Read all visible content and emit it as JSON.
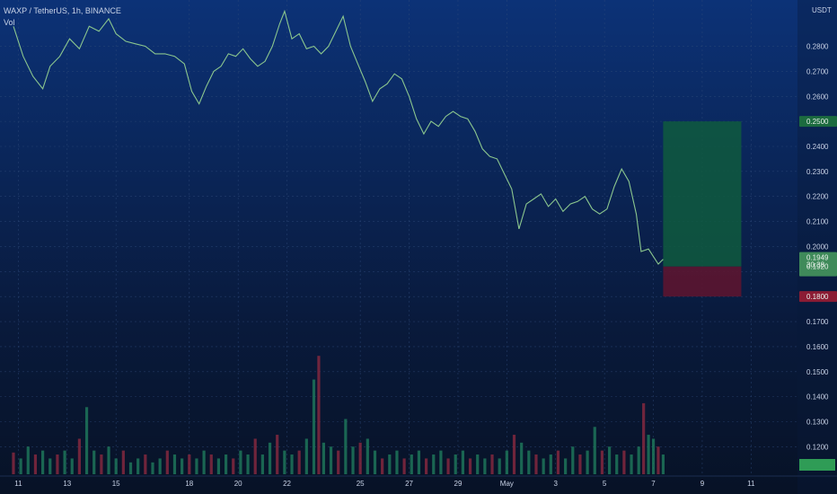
{
  "chart_data": {
    "type": "line",
    "title": "WAXP / TetherUS, 1h, BINANCE",
    "volume_label": "Vol",
    "currency": "USDT",
    "y_ticks": [
      "0.2800",
      "0.2700",
      "0.2600",
      "0.2500",
      "0.2400",
      "0.2300",
      "0.2200",
      "0.2100",
      "0.2000",
      "0.1900",
      "0.1800",
      "0.1700",
      "0.1600",
      "0.1500",
      "0.1400",
      "0.1300",
      "0.1200"
    ],
    "ylim": [
      0.109,
      0.2985
    ],
    "x_ticks": [
      "11",
      "13",
      "15",
      "18",
      "20",
      "22",
      "25",
      "27",
      "29",
      "May",
      "3",
      "5",
      "7",
      "9",
      "11"
    ],
    "x_tick_days": [
      11,
      13,
      15,
      18,
      20,
      22,
      25,
      27,
      29,
      31,
      33,
      35,
      37,
      39,
      41
    ],
    "xlim": [
      10.25,
      42.9
    ],
    "series": [
      {
        "values": [
          [
            10.8,
            0.288
          ],
          [
            11.2,
            0.276
          ],
          [
            11.6,
            0.268
          ],
          [
            12.0,
            0.263
          ],
          [
            12.3,
            0.272
          ],
          [
            12.7,
            0.276
          ],
          [
            13.1,
            0.283
          ],
          [
            13.5,
            0.279
          ],
          [
            13.9,
            0.288
          ],
          [
            14.3,
            0.286
          ],
          [
            14.7,
            0.291
          ],
          [
            15.0,
            0.285
          ],
          [
            15.4,
            0.282
          ],
          [
            15.8,
            0.281
          ],
          [
            16.2,
            0.28
          ],
          [
            16.6,
            0.277
          ],
          [
            17.0,
            0.277
          ],
          [
            17.4,
            0.276
          ],
          [
            17.8,
            0.273
          ],
          [
            18.1,
            0.262
          ],
          [
            18.4,
            0.257
          ],
          [
            18.7,
            0.264
          ],
          [
            19.0,
            0.27
          ],
          [
            19.3,
            0.272
          ],
          [
            19.6,
            0.277
          ],
          [
            19.9,
            0.276
          ],
          [
            20.2,
            0.279
          ],
          [
            20.5,
            0.275
          ],
          [
            20.8,
            0.272
          ],
          [
            21.1,
            0.274
          ],
          [
            21.4,
            0.28
          ],
          [
            21.7,
            0.289
          ],
          [
            21.9,
            0.294
          ],
          [
            22.2,
            0.283
          ],
          [
            22.5,
            0.285
          ],
          [
            22.8,
            0.279
          ],
          [
            23.1,
            0.28
          ],
          [
            23.4,
            0.277
          ],
          [
            23.7,
            0.28
          ],
          [
            24.0,
            0.286
          ],
          [
            24.3,
            0.292
          ],
          [
            24.6,
            0.28
          ],
          [
            24.9,
            0.273
          ],
          [
            25.2,
            0.266
          ],
          [
            25.5,
            0.258
          ],
          [
            25.8,
            0.263
          ],
          [
            26.1,
            0.265
          ],
          [
            26.4,
            0.269
          ],
          [
            26.7,
            0.267
          ],
          [
            27.0,
            0.26
          ],
          [
            27.3,
            0.251
          ],
          [
            27.6,
            0.245
          ],
          [
            27.9,
            0.25
          ],
          [
            28.2,
            0.248
          ],
          [
            28.5,
            0.252
          ],
          [
            28.8,
            0.254
          ],
          [
            29.1,
            0.252
          ],
          [
            29.4,
            0.251
          ],
          [
            29.7,
            0.246
          ],
          [
            30.0,
            0.239
          ],
          [
            30.3,
            0.236
          ],
          [
            30.6,
            0.235
          ],
          [
            30.9,
            0.229
          ],
          [
            31.2,
            0.223
          ],
          [
            31.5,
            0.207
          ],
          [
            31.8,
            0.217
          ],
          [
            32.1,
            0.219
          ],
          [
            32.4,
            0.221
          ],
          [
            32.7,
            0.216
          ],
          [
            33.0,
            0.219
          ],
          [
            33.3,
            0.214
          ],
          [
            33.6,
            0.217
          ],
          [
            33.9,
            0.218
          ],
          [
            34.2,
            0.22
          ],
          [
            34.5,
            0.215
          ],
          [
            34.8,
            0.213
          ],
          [
            35.1,
            0.215
          ],
          [
            35.4,
            0.224
          ],
          [
            35.7,
            0.231
          ],
          [
            36.0,
            0.226
          ],
          [
            36.3,
            0.213
          ],
          [
            36.5,
            0.198
          ],
          [
            36.8,
            0.199
          ],
          [
            37.0,
            0.196
          ],
          [
            37.2,
            0.193
          ],
          [
            37.4,
            0.1949
          ]
        ]
      }
    ],
    "volume_max": 0.0033,
    "volume": [
      [
        10.8,
        0.00055
      ],
      [
        11.1,
        0.0004
      ],
      [
        11.4,
        0.0007
      ],
      [
        11.7,
        0.0005
      ],
      [
        12.0,
        0.0006
      ],
      [
        12.3,
        0.0004
      ],
      [
        12.6,
        0.0005
      ],
      [
        12.9,
        0.0006
      ],
      [
        13.2,
        0.0004
      ],
      [
        13.5,
        0.0009
      ],
      [
        13.8,
        0.0017
      ],
      [
        14.1,
        0.0006
      ],
      [
        14.4,
        0.0005
      ],
      [
        14.7,
        0.0007
      ],
      [
        15.0,
        0.0004
      ],
      [
        15.3,
        0.0006
      ],
      [
        15.6,
        0.0003
      ],
      [
        15.9,
        0.0004
      ],
      [
        16.2,
        0.0005
      ],
      [
        16.5,
        0.0003
      ],
      [
        16.8,
        0.0004
      ],
      [
        17.1,
        0.0006
      ],
      [
        17.4,
        0.0005
      ],
      [
        17.7,
        0.0004
      ],
      [
        18.0,
        0.0005
      ],
      [
        18.3,
        0.0004
      ],
      [
        18.6,
        0.0006
      ],
      [
        18.9,
        0.0005
      ],
      [
        19.2,
        0.0004
      ],
      [
        19.5,
        0.0005
      ],
      [
        19.8,
        0.0004
      ],
      [
        20.1,
        0.0006
      ],
      [
        20.4,
        0.0005
      ],
      [
        20.7,
        0.0009
      ],
      [
        21.0,
        0.0005
      ],
      [
        21.3,
        0.0008
      ],
      [
        21.6,
        0.001
      ],
      [
        21.9,
        0.0006
      ],
      [
        22.2,
        0.0005
      ],
      [
        22.5,
        0.0006
      ],
      [
        22.8,
        0.0009
      ],
      [
        23.1,
        0.0024
      ],
      [
        23.3,
        0.003
      ],
      [
        23.5,
        0.0008
      ],
      [
        23.8,
        0.0007
      ],
      [
        24.1,
        0.0006
      ],
      [
        24.4,
        0.0014
      ],
      [
        24.7,
        0.0007
      ],
      [
        25.0,
        0.0008
      ],
      [
        25.3,
        0.0009
      ],
      [
        25.6,
        0.0006
      ],
      [
        25.9,
        0.0004
      ],
      [
        26.2,
        0.0005
      ],
      [
        26.5,
        0.0006
      ],
      [
        26.8,
        0.0004
      ],
      [
        27.1,
        0.0005
      ],
      [
        27.4,
        0.0006
      ],
      [
        27.7,
        0.0004
      ],
      [
        28.0,
        0.0005
      ],
      [
        28.3,
        0.0006
      ],
      [
        28.6,
        0.0004
      ],
      [
        28.9,
        0.0005
      ],
      [
        29.2,
        0.0006
      ],
      [
        29.5,
        0.0004
      ],
      [
        29.8,
        0.0005
      ],
      [
        30.1,
        0.0004
      ],
      [
        30.4,
        0.0005
      ],
      [
        30.7,
        0.0004
      ],
      [
        31.0,
        0.0006
      ],
      [
        31.3,
        0.001
      ],
      [
        31.6,
        0.0008
      ],
      [
        31.9,
        0.0006
      ],
      [
        32.2,
        0.0005
      ],
      [
        32.5,
        0.0004
      ],
      [
        32.8,
        0.0005
      ],
      [
        33.1,
        0.0006
      ],
      [
        33.4,
        0.0004
      ],
      [
        33.7,
        0.0007
      ],
      [
        34.0,
        0.0005
      ],
      [
        34.3,
        0.0006
      ],
      [
        34.6,
        0.0012
      ],
      [
        34.9,
        0.0006
      ],
      [
        35.2,
        0.0007
      ],
      [
        35.5,
        0.0005
      ],
      [
        35.8,
        0.0006
      ],
      [
        36.1,
        0.0005
      ],
      [
        36.4,
        0.0007
      ],
      [
        36.6,
        0.0018
      ],
      [
        36.8,
        0.001
      ],
      [
        37.0,
        0.0009
      ],
      [
        37.2,
        0.0007
      ],
      [
        37.4,
        0.0005
      ]
    ],
    "position": {
      "entry": 0.192,
      "target": 0.25,
      "stop": 0.18,
      "start_day": 37.4,
      "end_day": 40.6
    },
    "price_labels": {
      "target": "0.2500",
      "current": "0.1949",
      "countdown": "30:38",
      "entry": "0.1920",
      "stop": "0.1800"
    },
    "colors": {
      "line": "#8bc68e",
      "target_zone": "#0f5a3e",
      "stop_zone": "#5c1530",
      "vol_up": "#1f7a5c",
      "vol_down": "#8b2940",
      "grid": "#2f4a7a"
    }
  }
}
